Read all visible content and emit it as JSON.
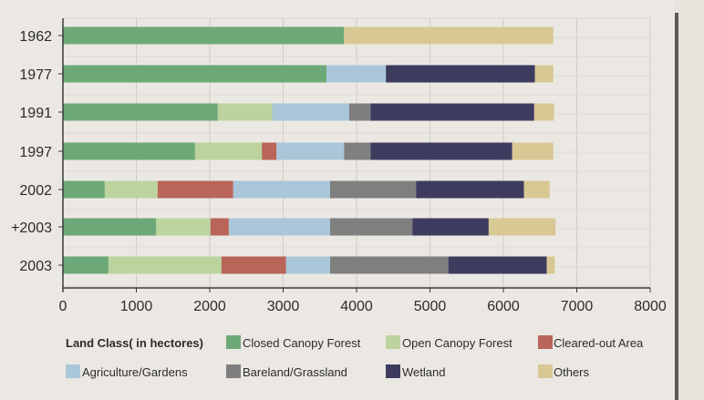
{
  "chart_data": {
    "type": "bar",
    "orientation": "horizontal",
    "stacked": true,
    "categories": [
      "1962",
      "1977",
      "1991",
      "1997",
      "2002",
      "+2003",
      "2003"
    ],
    "xlim": [
      0,
      8000
    ],
    "xticks": [
      0,
      1000,
      2000,
      3000,
      4000,
      5000,
      6000,
      7000,
      8000
    ],
    "grid": true,
    "legend_title": "Land Class( in hectores)",
    "legend_position": "bottom",
    "series": [
      {
        "name": "Closed Canopy Forest",
        "color": "#6da978",
        "values": [
          3830,
          3590,
          2110,
          1800,
          570,
          1270,
          620
        ]
      },
      {
        "name": "Open Canopy Forest",
        "color": "#bcd39e",
        "values": [
          0,
          0,
          740,
          910,
          720,
          740,
          1540
        ]
      },
      {
        "name": "Cleared-out Area",
        "color": "#b9655a",
        "values": [
          0,
          0,
          0,
          200,
          1030,
          250,
          880
        ]
      },
      {
        "name": "Agriculture/Gardens",
        "color": "#a9c7d9",
        "values": [
          0,
          810,
          1050,
          920,
          1320,
          1380,
          600
        ]
      },
      {
        "name": "Bareland/Grassland",
        "color": "#7f7f7f",
        "values": [
          0,
          0,
          290,
          360,
          1170,
          1120,
          1610
        ]
      },
      {
        "name": "Wetland",
        "color": "#3e3c5e",
        "values": [
          0,
          2030,
          2230,
          1930,
          1470,
          1040,
          1340
        ]
      },
      {
        "name": "Others",
        "color": "#d8c894",
        "values": [
          2850,
          250,
          270,
          560,
          350,
          910,
          110
        ]
      }
    ]
  }
}
